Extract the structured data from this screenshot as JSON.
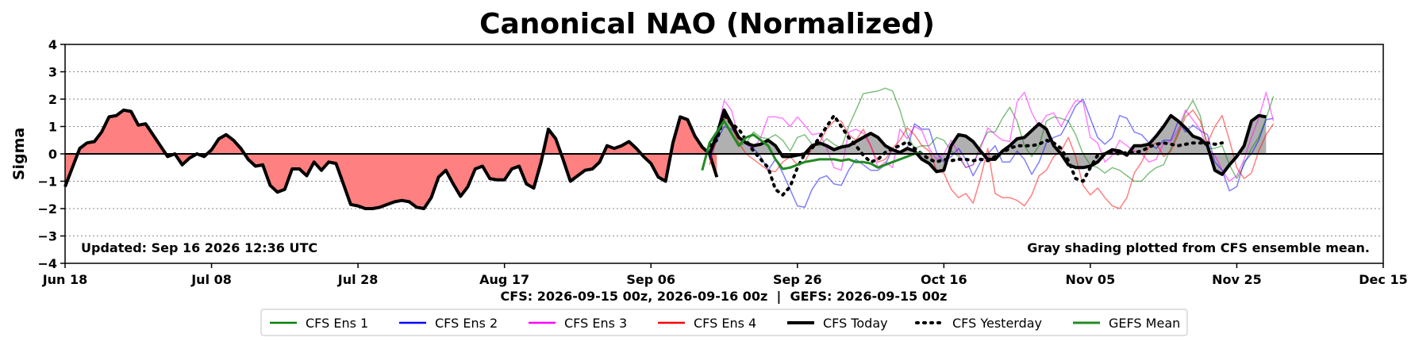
{
  "chart_data": {
    "type": "line",
    "title": "Canonical NAO (Normalized)",
    "ylabel": "Sigma",
    "xlabel": "CFS: 2026-09-15 00z, 2026-09-16 00z  |  GEFS: 2026-09-15 00z",
    "ylim": [
      -4,
      4
    ],
    "yticks": [
      "4",
      "3",
      "2",
      "1",
      "0",
      "−1",
      "−2",
      "−3",
      "−4"
    ],
    "xlim": [
      "2026-06-18",
      "2026-12-15"
    ],
    "xticks": [
      {
        "label": "Jun 18",
        "date": "2026-06-18"
      },
      {
        "label": "Jul 08",
        "date": "2026-07-08"
      },
      {
        "label": "Jul 28",
        "date": "2026-07-28"
      },
      {
        "label": "Aug 17",
        "date": "2026-08-17"
      },
      {
        "label": "Sep 06",
        "date": "2026-09-06"
      },
      {
        "label": "Sep 26",
        "date": "2026-09-26"
      },
      {
        "label": "Oct 16",
        "date": "2026-10-16"
      },
      {
        "label": "Nov 05",
        "date": "2026-11-05"
      },
      {
        "label": "Nov 25",
        "date": "2026-11-25"
      },
      {
        "label": "Dec 15",
        "date": "2026-12-15"
      }
    ],
    "grid": "horizontal dotted",
    "legend_placement": "bottom-center",
    "annotations": {
      "updated": "Updated: Sep 16 2026 12:36 UTC",
      "shading_note": "Gray shading plotted from CFS ensemble mean."
    },
    "observed": {
      "color": "#000000",
      "negative_fill": "#ff8080",
      "positive_fill": "#ff8080",
      "start_date": "2026-06-18",
      "values": [
        -1.2,
        -0.5,
        0.2,
        0.4,
        0.45,
        0.8,
        1.35,
        1.4,
        1.6,
        1.55,
        1.05,
        1.1,
        0.7,
        0.3,
        -0.1,
        0.0,
        -0.4,
        -0.15,
        0.0,
        -0.1,
        0.15,
        0.55,
        0.7,
        0.5,
        0.2,
        -0.2,
        -0.45,
        -0.4,
        -1.15,
        -1.4,
        -1.3,
        -0.55,
        -0.55,
        -0.8,
        -0.3,
        -0.6,
        -0.3,
        -0.35,
        -1.1,
        -1.85,
        -1.9,
        -2.0,
        -2.0,
        -1.95,
        -1.85,
        -1.75,
        -1.7,
        -1.75,
        -1.95,
        -2.0,
        -1.6,
        -0.85,
        -0.6,
        -1.1,
        -1.55,
        -1.2,
        -0.55,
        -0.45,
        -0.9,
        -0.95,
        -0.95,
        -0.55,
        -0.45,
        -1.1,
        -1.25,
        -0.3,
        0.9,
        0.55,
        -0.2,
        -1.0,
        -0.8,
        -0.6,
        -0.55,
        -0.3,
        0.3,
        0.2,
        0.3,
        0.45,
        0.2,
        -0.1,
        -0.35,
        -0.85,
        -1.0,
        0.4,
        1.35,
        1.25,
        0.65,
        0.25,
        0.0,
        -0.85
      ]
    },
    "series": [
      {
        "name": "CFS Ens 1",
        "color": "#008000",
        "legend_color": "#008000",
        "alpha": 0.5,
        "width": 1.5,
        "dash": "",
        "start_date": "2026-09-14",
        "values": [
          -0.1,
          0.6,
          1.2,
          0.7,
          0.3,
          0.4,
          0.8,
          0.6,
          0.55,
          0.7,
          0.5,
          0.1,
          0.6,
          0.7,
          0.35,
          0.3,
          0.55,
          0.35,
          0.2,
          1.0,
          1.6,
          2.2,
          2.25,
          2.3,
          2.4,
          2.3,
          1.6,
          0.7,
          0.2,
          0.3,
          0.3,
          0.6,
          0.5,
          0.1,
          -0.1,
          -0.5,
          -0.4,
          0.3,
          0.8,
          0.8,
          1.3,
          1.7,
          1.2,
          0.3,
          -0.1,
          0.3,
          1.2,
          1.35,
          1.3,
          1.2,
          0.7,
          0.0,
          -0.4,
          -0.5,
          -0.7,
          -0.5,
          -0.6,
          -0.8,
          -1.0,
          -1.0,
          -0.7,
          -0.5,
          -0.4,
          0.2,
          0.8,
          1.5,
          1.95,
          1.4,
          0.2,
          0.2,
          0.3,
          -0.4,
          -0.9,
          -0.4,
          0.2,
          0.6,
          1.3,
          2.1
        ]
      },
      {
        "name": "CFS Ens 2",
        "color": "#0000ff",
        "legend_color": "#0000ff",
        "alpha": 0.5,
        "width": 1.5,
        "dash": "",
        "start_date": "2026-09-14",
        "values": [
          -0.2,
          0.5,
          1.0,
          0.9,
          0.6,
          0.35,
          0.2,
          -0.1,
          -0.6,
          -0.2,
          -0.7,
          -1.3,
          -1.9,
          -1.95,
          -1.3,
          -0.9,
          -0.8,
          -1.1,
          -1.15,
          -0.6,
          -0.2,
          -0.4,
          -0.6,
          -0.6,
          -0.4,
          0.2,
          0.0,
          0.2,
          1.1,
          0.9,
          0.9,
          0.05,
          -0.3,
          -0.1,
          0.2,
          -0.2,
          -0.8,
          -0.3,
          0.0,
          0.3,
          -0.3,
          -0.3,
          0.1,
          -0.2,
          -0.75,
          -0.3,
          0.4,
          0.6,
          0.7,
          1.2,
          1.75,
          2.0,
          1.3,
          0.6,
          0.35,
          0.6,
          1.4,
          1.3,
          0.8,
          0.7,
          0.4,
          0.2,
          0.5,
          0.5,
          1.2,
          0.8,
          1.05,
          0.85,
          0.7,
          -0.3,
          -0.6,
          -1.35,
          -1.2,
          -0.3,
          0.0,
          0.5,
          1.25,
          1.3
        ]
      },
      {
        "name": "CFS Ens 3",
        "color": "#ff00ff",
        "legend_color": "#ff00ff",
        "alpha": 0.5,
        "width": 1.5,
        "dash": "",
        "start_date": "2026-09-14",
        "values": [
          0.0,
          0.7,
          1.95,
          1.6,
          0.55,
          0.35,
          0.2,
          0.6,
          1.35,
          1.35,
          1.3,
          1.0,
          1.35,
          1.05,
          0.7,
          0.75,
          0.2,
          -0.5,
          -0.6,
          0.8,
          0.9,
          0.75,
          0.3,
          -0.5,
          -0.3,
          -0.5,
          0.9,
          0.55,
          1.0,
          0.85,
          0.2,
          -0.2,
          0.0,
          0.5,
          0.0,
          -0.5,
          -0.4,
          0.2,
          0.95,
          0.7,
          0.5,
          0.45,
          1.9,
          2.25,
          1.5,
          1.0,
          1.4,
          1.5,
          1.0,
          1.5,
          1.95,
          1.9,
          0.6,
          0.4,
          -0.3,
          -0.05,
          0.5,
          0.3,
          0.1,
          0.0,
          -0.3,
          -0.2,
          0.4,
          0.45,
          0.9,
          1.6,
          1.25,
          0.9,
          0.2,
          -0.05,
          -0.6,
          -1.0,
          -0.8,
          -0.2,
          0.6,
          1.3,
          2.25,
          1.2
        ]
      },
      {
        "name": "CFS Ens 4",
        "color": "#ff0000",
        "legend_color": "#ff0000",
        "alpha": 0.5,
        "width": 1.5,
        "dash": "",
        "start_date": "2026-09-14",
        "values": [
          -0.4,
          0.6,
          1.4,
          1.0,
          0.4,
          0.0,
          -0.2,
          -0.4,
          -0.6,
          -0.65,
          -0.3,
          -0.1,
          -0.4,
          -0.3,
          0.2,
          0.4,
          0.9,
          1.2,
          1.2,
          0.7,
          0.5,
          0.9,
          0.3,
          -0.3,
          -0.2,
          0.2,
          0.5,
          0.95,
          0.7,
          0.3,
          0.1,
          -0.6,
          -0.7,
          -1.3,
          -1.6,
          -1.45,
          -1.8,
          -0.9,
          0.2,
          -1.45,
          -1.6,
          -1.6,
          -1.7,
          -1.9,
          -1.5,
          -0.8,
          -0.6,
          -0.1,
          0.1,
          0.6,
          -0.1,
          -1.15,
          -1.5,
          -1.25,
          -1.6,
          -1.9,
          -2.0,
          -1.6,
          -0.7,
          -0.3,
          0.25,
          0.4,
          -0.1,
          0.1,
          0.7,
          1.35,
          1.6,
          1.2,
          0.4,
          1.0,
          1.4,
          0.5,
          -0.5,
          -0.9,
          -0.7,
          0.1,
          0.7,
          1.1
        ]
      },
      {
        "name": "CFS Today",
        "color": "#000000",
        "legend_color": "#000000",
        "alpha": 1,
        "width": 4,
        "dash": "",
        "shade": "#b0b0b0",
        "start_date": "2026-09-14",
        "values": [
          0.0,
          0.7,
          1.6,
          1.1,
          0.6,
          0.4,
          0.3,
          0.35,
          0.5,
          0.3,
          -0.1,
          -0.1,
          -0.05,
          0.0,
          0.3,
          0.4,
          0.3,
          0.15,
          0.25,
          0.3,
          0.45,
          0.6,
          0.75,
          0.6,
          0.3,
          0.15,
          0.05,
          0.2,
          0.1,
          -0.2,
          -0.35,
          -0.65,
          -0.6,
          0.3,
          0.7,
          0.65,
          0.45,
          0.1,
          -0.2,
          -0.2,
          0.1,
          0.3,
          0.55,
          0.6,
          0.85,
          1.1,
          0.9,
          0.3,
          0.0,
          -0.4,
          -0.5,
          -0.5,
          -0.45,
          -0.3,
          0.0,
          0.15,
          0.1,
          -0.05,
          0.3,
          0.3,
          0.35,
          0.65,
          1.0,
          1.4,
          1.2,
          0.95,
          0.65,
          0.55,
          0.3,
          -0.6,
          -0.75,
          -0.4,
          -0.1,
          0.3,
          1.2,
          1.4,
          1.35
        ]
      },
      {
        "name": "CFS Yesterday",
        "color": "#000000",
        "legend_color": "#000000",
        "alpha": 1,
        "width": 4,
        "dash": "2,7",
        "linecap": "round",
        "start_date": "2026-09-14",
        "values": [
          0.3,
          0.5,
          1.4,
          1.1,
          0.9,
          0.5,
          0.1,
          -0.2,
          -0.5,
          -1.3,
          -1.5,
          -1.2,
          -0.5,
          0.0,
          0.2,
          0.6,
          1.0,
          1.4,
          1.0,
          0.6,
          0.3,
          -0.05,
          -0.3,
          -0.2,
          0.05,
          0.2,
          0.3,
          0.45,
          0.2,
          0.0,
          -0.2,
          -0.3,
          -0.2,
          -0.25,
          -0.2,
          -0.2,
          -0.25,
          -0.2,
          -0.25,
          -0.1,
          0.05,
          0.2,
          0.3,
          0.3,
          0.3,
          0.35,
          0.5,
          0.4,
          0.2,
          -0.25,
          -0.9,
          -1.0,
          -0.5,
          -0.05,
          0.0,
          0.05,
          0.0,
          0.05,
          0.05,
          0.1,
          0.25,
          0.35,
          0.4,
          0.35,
          0.3,
          0.35,
          0.4,
          0.4,
          0.4,
          0.35,
          0.4
        ]
      },
      {
        "name": "GEFS Mean",
        "color": "#228b22",
        "legend_color": "#228b22",
        "alpha": 1,
        "width": 3,
        "dash": "",
        "start_date": "2026-09-13",
        "values": [
          -0.6,
          0.4,
          0.8,
          1.2,
          0.75,
          0.3,
          0.6,
          0.7,
          0.5,
          0.3,
          -0.2,
          -0.55,
          -0.5,
          -0.4,
          -0.3,
          -0.25,
          -0.2,
          -0.2,
          -0.2,
          -0.25,
          -0.2,
          -0.3,
          -0.3,
          -0.35,
          -0.5,
          -0.4,
          -0.3,
          -0.2,
          -0.1,
          0.0,
          0.05
        ]
      }
    ]
  }
}
